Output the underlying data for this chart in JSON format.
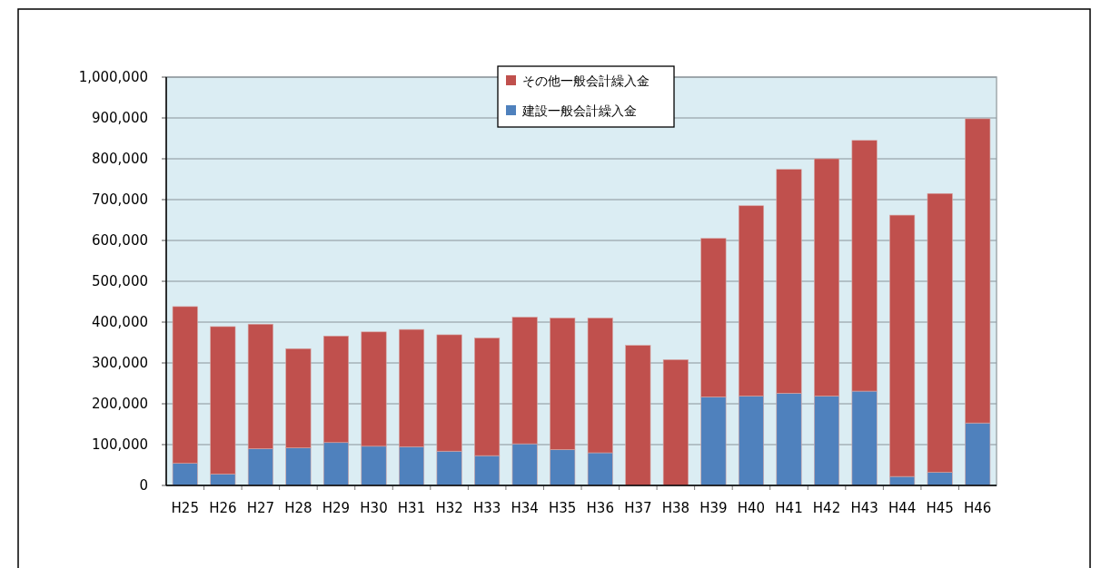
{
  "chart_data": {
    "type": "bar",
    "stacked": true,
    "categories": [
      "H25",
      "H26",
      "H27",
      "H28",
      "H29",
      "H30",
      "H31",
      "H32",
      "H33",
      "H34",
      "H35",
      "H36",
      "H37",
      "H38",
      "H39",
      "H40",
      "H41",
      "H42",
      "H43",
      "H44",
      "H45",
      "H46"
    ],
    "series": [
      {
        "name": "建設一般会計繰入金",
        "color": "#4f81bd",
        "values": [
          54000,
          28000,
          90000,
          92000,
          105000,
          96000,
          95000,
          84000,
          73000,
          102000,
          88000,
          80000,
          0,
          0,
          217000,
          219000,
          226000,
          219000,
          231000,
          22000,
          32000,
          153000
        ]
      },
      {
        "name": "その他一般会計繰入金",
        "color": "#c0504d",
        "values": [
          384000,
          361000,
          305000,
          243000,
          261000,
          280000,
          287000,
          285000,
          288000,
          310000,
          322000,
          330000,
          343000,
          308000,
          388000,
          466000,
          548000,
          581000,
          614000,
          640000,
          683000,
          745000
        ]
      }
    ],
    "ylim": [
      0,
      1000000
    ],
    "yticks": [
      0,
      {
        "value": 100000,
        "label": "100,000"
      },
      {
        "value": 200000,
        "label": "200,000"
      },
      {
        "value": 300000,
        "label": "300,000"
      },
      {
        "value": 400000,
        "label": "400,000"
      },
      {
        "value": 500000,
        "label": "500,000"
      },
      {
        "value": 600000,
        "label": "600,000"
      },
      {
        "value": 700000,
        "label": "700,000"
      },
      {
        "value": 800000,
        "label": "800,000"
      },
      {
        "value": 900000,
        "label": "900,000"
      },
      {
        "value": 1000000,
        "label": "1,000,000"
      }
    ],
    "grid": "y",
    "legend": "top"
  }
}
